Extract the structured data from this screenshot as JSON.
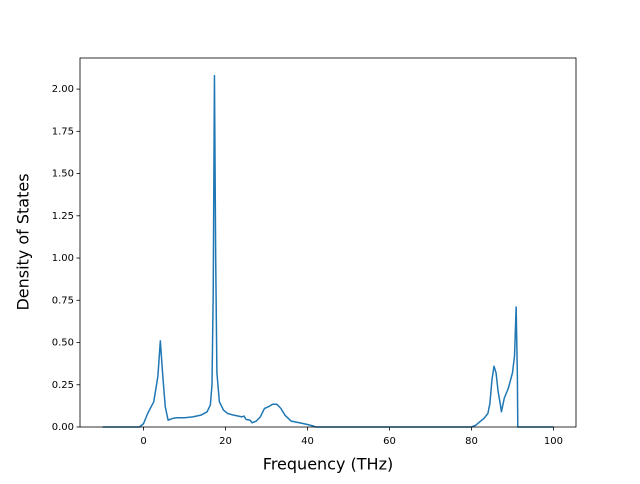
{
  "chart_data": {
    "type": "line",
    "xlabel": "Frequency (THz)",
    "ylabel": "Density of States",
    "xlim": [
      -15.5,
      105.5
    ],
    "ylim": [
      0,
      2.184
    ],
    "xticks": [
      0,
      20,
      40,
      60,
      80,
      100
    ],
    "yticks": [
      {
        "value": 0,
        "label": "0.00"
      },
      {
        "value": 0.25,
        "label": "0.25"
      },
      {
        "value": 0.5,
        "label": "0.50"
      },
      {
        "value": 0.75,
        "label": "0.75"
      },
      {
        "value": 1,
        "label": "1.00"
      },
      {
        "value": 1.25,
        "label": "1.25"
      },
      {
        "value": 1.5,
        "label": "1.50"
      },
      {
        "value": 1.75,
        "label": "1.75"
      },
      {
        "value": 2,
        "label": "2.00"
      }
    ],
    "x": [
      -10,
      -1,
      0,
      1,
      2.5,
      3.5,
      4.1,
      4.7,
      5.3,
      6,
      7,
      8,
      10,
      12,
      14,
      15.5,
      16.3,
      16.7,
      17,
      17.3,
      17.6,
      17.9,
      18.5,
      19.5,
      20.5,
      22,
      24,
      24.5,
      25,
      26,
      26.5,
      27.5,
      28.5,
      29.5,
      30.5,
      31.5,
      32.5,
      33.5,
      34.5,
      36,
      38,
      40,
      41.5,
      42,
      80,
      81,
      82,
      83,
      84,
      84.5,
      85,
      85.5,
      86,
      86.5,
      87,
      87.3,
      88,
      89,
      90,
      90.5,
      90.9,
      91.2,
      91.3,
      100
    ],
    "series": [
      {
        "color": "#1f77b4",
        "values": [
          0,
          0,
          0.02,
          0.08,
          0.15,
          0.3,
          0.51,
          0.3,
          0.12,
          0.04,
          0.05,
          0.055,
          0.055,
          0.06,
          0.07,
          0.09,
          0.13,
          0.25,
          0.8,
          2.08,
          1.0,
          0.32,
          0.15,
          0.1,
          0.08,
          0.07,
          0.06,
          0.065,
          0.045,
          0.04,
          0.025,
          0.035,
          0.06,
          0.11,
          0.12,
          0.135,
          0.135,
          0.11,
          0.07,
          0.035,
          0.025,
          0.015,
          0.005,
          0,
          0,
          0.01,
          0.03,
          0.05,
          0.08,
          0.14,
          0.28,
          0.36,
          0.32,
          0.21,
          0.14,
          0.09,
          0.17,
          0.23,
          0.32,
          0.42,
          0.71,
          0.3,
          0,
          0
        ]
      }
    ]
  }
}
